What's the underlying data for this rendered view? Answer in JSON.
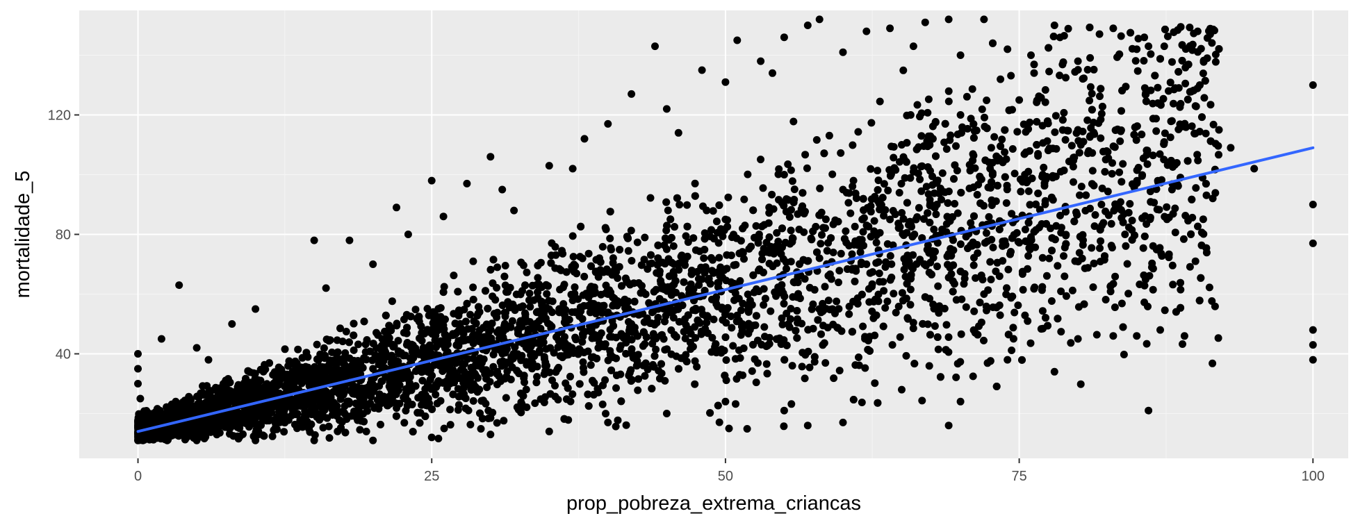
{
  "chart_data": {
    "type": "scatter",
    "title": "",
    "xlabel": "prop_pobreza_extrema_criancas",
    "ylabel": "mortalidade_5",
    "xlim": [
      -5,
      103
    ],
    "ylim": [
      5,
      155
    ],
    "x_ticks": [
      0,
      25,
      50,
      75,
      100
    ],
    "x_tick_labels": [
      "0",
      "25",
      "50",
      "75",
      "100"
    ],
    "y_ticks": [
      40,
      80,
      120
    ],
    "y_tick_labels": [
      "40",
      "80",
      "120"
    ],
    "grid": true,
    "legend": "none",
    "colors": {
      "panel_background": "#ebebeb",
      "grid_major": "#ffffff",
      "grid_minor": "#f5f5f5",
      "points": "#000000",
      "fit_line": "#3366ff"
    },
    "series": [
      {
        "kind": "points",
        "sampled": true,
        "note_values": "sample of visible points read from the plot",
        "points": [
          [
            0,
            40
          ],
          [
            0,
            35
          ],
          [
            0,
            30
          ],
          [
            0.2,
            25
          ],
          [
            0.5,
            20
          ],
          [
            1,
            15
          ],
          [
            2,
            45
          ],
          [
            3.5,
            63
          ],
          [
            5,
            42
          ],
          [
            6,
            38
          ],
          [
            8,
            50
          ],
          [
            10,
            55
          ],
          [
            12,
            30
          ],
          [
            15,
            78
          ],
          [
            16,
            62
          ],
          [
            18,
            78
          ],
          [
            20,
            70
          ],
          [
            22,
            89
          ],
          [
            23,
            80
          ],
          [
            25,
            98
          ],
          [
            26,
            86
          ],
          [
            28,
            97
          ],
          [
            30,
            106
          ],
          [
            31,
            95
          ],
          [
            32,
            88
          ],
          [
            35,
            103
          ],
          [
            37,
            102
          ],
          [
            38,
            112
          ],
          [
            40,
            117
          ],
          [
            42,
            127
          ],
          [
            44,
            143
          ],
          [
            45,
            122
          ],
          [
            46,
            114
          ],
          [
            48,
            135
          ],
          [
            50,
            131
          ],
          [
            51,
            145
          ],
          [
            53,
            138
          ],
          [
            54,
            134
          ],
          [
            55,
            146
          ],
          [
            57,
            150
          ],
          [
            58,
            152
          ],
          [
            60,
            141
          ],
          [
            62,
            148
          ],
          [
            64,
            149
          ],
          [
            66,
            143
          ],
          [
            67,
            151
          ],
          [
            69,
            152
          ],
          [
            70,
            140
          ],
          [
            72,
            152
          ],
          [
            74,
            142
          ],
          [
            76,
            140
          ],
          [
            78,
            150
          ],
          [
            80,
            138
          ],
          [
            83,
            149
          ],
          [
            85,
            142
          ],
          [
            86,
            143
          ],
          [
            88,
            118
          ],
          [
            90,
            123
          ],
          [
            91,
            139
          ],
          [
            92,
            115
          ],
          [
            93,
            109
          ],
          [
            95,
            102
          ],
          [
            100,
            130
          ],
          [
            100,
            90
          ],
          [
            100,
            77
          ],
          [
            100,
            48
          ],
          [
            100,
            43
          ],
          [
            100,
            38
          ],
          [
            90,
            71
          ],
          [
            87,
            48
          ],
          [
            85,
            46
          ],
          [
            86,
            21
          ],
          [
            83,
            46
          ],
          [
            80,
            45
          ],
          [
            78,
            34
          ],
          [
            74,
            38
          ],
          [
            70,
            24
          ],
          [
            69,
            16
          ],
          [
            65,
            28
          ],
          [
            60,
            17
          ],
          [
            57,
            16
          ],
          [
            55,
            21
          ],
          [
            50,
            24
          ],
          [
            45,
            20
          ],
          [
            40,
            17
          ],
          [
            35,
            14
          ],
          [
            30,
            13
          ],
          [
            25,
            12
          ],
          [
            20,
            11
          ],
          [
            15,
            11
          ],
          [
            10,
            11
          ],
          [
            5,
            11
          ],
          [
            0,
            11
          ],
          [
            60,
            95
          ],
          [
            65,
            110
          ],
          [
            70,
            120
          ],
          [
            75,
            125
          ],
          [
            80,
            115
          ],
          [
            55,
            100
          ],
          [
            50,
            85
          ],
          [
            45,
            75
          ],
          [
            40,
            60
          ],
          [
            35,
            55
          ],
          [
            30,
            45
          ],
          [
            25,
            40
          ],
          [
            20,
            35
          ],
          [
            15,
            30
          ],
          [
            10,
            25
          ],
          [
            62,
            70
          ],
          [
            68,
            90
          ],
          [
            72,
            60
          ],
          [
            77,
            100
          ],
          [
            82,
            90
          ],
          [
            84,
            80
          ],
          [
            88,
            95
          ],
          [
            42,
            50
          ],
          [
            48,
            65
          ],
          [
            52,
            55
          ],
          [
            58,
            72
          ],
          [
            64,
            85
          ]
        ]
      },
      {
        "kind": "linear_fit",
        "x": [
          0,
          100
        ],
        "y": [
          14,
          109
        ]
      }
    ]
  }
}
